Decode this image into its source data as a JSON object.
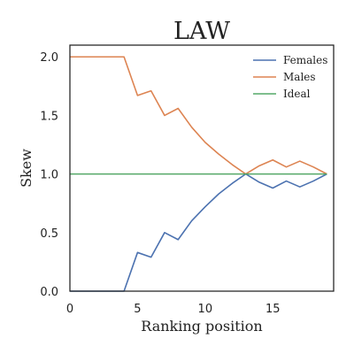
{
  "chart_data": {
    "type": "line",
    "title": "LAW",
    "xlabel": "Ranking position",
    "ylabel": "Skew",
    "xlim": [
      0,
      19.5
    ],
    "ylim": [
      0,
      2.1
    ],
    "xticks": [
      0,
      5,
      10,
      15
    ],
    "yticks": [
      "0.0",
      "0.5",
      "1.0",
      "1.5",
      "2.0"
    ],
    "grid": false,
    "legend_position": "top-right",
    "x": [
      0,
      1,
      2,
      3,
      4,
      5,
      6,
      7,
      8,
      9,
      10,
      11,
      12,
      13,
      14,
      15,
      16,
      17,
      18,
      19
    ],
    "series": [
      {
        "name": "Females",
        "color": "#4c72b0",
        "values": [
          0.0,
          0.0,
          0.0,
          0.0,
          0.0,
          0.33,
          0.29,
          0.5,
          0.44,
          0.6,
          0.72,
          0.83,
          0.92,
          1.0,
          0.93,
          0.88,
          0.94,
          0.89,
          0.94,
          1.0
        ]
      },
      {
        "name": "Males",
        "color": "#dd8452",
        "values": [
          2.0,
          2.0,
          2.0,
          2.0,
          2.0,
          1.67,
          1.71,
          1.5,
          1.56,
          1.4,
          1.27,
          1.17,
          1.08,
          1.0,
          1.07,
          1.12,
          1.06,
          1.11,
          1.06,
          1.0
        ]
      },
      {
        "name": "Ideal",
        "color": "#55a868",
        "values": [
          1.0,
          1.0,
          1.0,
          1.0,
          1.0,
          1.0,
          1.0,
          1.0,
          1.0,
          1.0,
          1.0,
          1.0,
          1.0,
          1.0,
          1.0,
          1.0,
          1.0,
          1.0,
          1.0,
          1.0
        ]
      }
    ]
  }
}
